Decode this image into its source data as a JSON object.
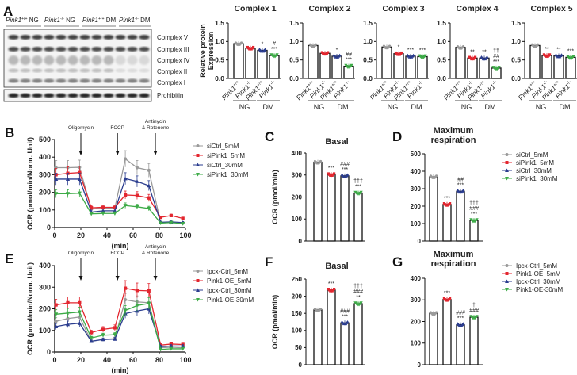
{
  "colors": {
    "gray": "#9a9a9a",
    "red": "#e3262f",
    "blue": "#2b3d8f",
    "green": "#3dab47"
  },
  "panel_labels": [
    "A",
    "B",
    "C",
    "D",
    "E",
    "F",
    "G"
  ],
  "western_blot": {
    "lane_groups": [
      {
        "gene": "Pink1",
        "genotype": "+/+",
        "condition": "NG"
      },
      {
        "gene": "Pink1",
        "genotype": "-/-",
        "condition": "NG"
      },
      {
        "gene": "Pink1",
        "genotype": "+/+",
        "condition": "DM"
      },
      {
        "gene": "Pink1",
        "genotype": "-/-",
        "condition": "DM"
      }
    ],
    "band_labels": [
      "Complex V",
      "Complex III",
      "Complex IV",
      "Complex II",
      "Complex I"
    ],
    "loading_control": "Prohibitin"
  },
  "chart_data": [
    {
      "id": "A-complex1",
      "type": "bar",
      "title": "Complex 1",
      "ylabel": "Relative protein Expression",
      "ylim": [
        0,
        1.5
      ],
      "yticks": [
        "0.0",
        "0.5",
        "1.0",
        "1.5"
      ],
      "categories": [
        {
          "gene": "Pink1",
          "genotype": "+/+"
        },
        {
          "gene": "Pink1",
          "genotype": "-/-"
        },
        {
          "gene": "Pink1",
          "genotype": "+/+"
        },
        {
          "gene": "Pink1",
          "genotype": "-/-"
        }
      ],
      "groups": [
        "NG",
        "DM"
      ],
      "values": [
        0.94,
        0.82,
        0.76,
        0.62
      ],
      "annotations": [
        "",
        "",
        "*",
        "#\n***"
      ]
    },
    {
      "id": "A-complex2",
      "type": "bar",
      "title": "Complex 2",
      "ylim": [
        0,
        1.5
      ],
      "yticks": [
        "0.0",
        "0.5",
        "1.0",
        "1.5"
      ],
      "categories": [
        {
          "gene": "Pink1",
          "genotype": "+/+"
        },
        {
          "gene": "Pink1",
          "genotype": "-/-"
        },
        {
          "gene": "Pink1",
          "genotype": "+/+"
        },
        {
          "gene": "Pink1",
          "genotype": "-/-"
        }
      ],
      "groups": [
        "NG",
        "DM"
      ],
      "values": [
        0.89,
        0.68,
        0.6,
        0.33
      ],
      "annotations": [
        "",
        "",
        "*",
        "##\n***"
      ]
    },
    {
      "id": "A-complex3",
      "type": "bar",
      "title": "Complex 3",
      "ylim": [
        0,
        1.5
      ],
      "yticks": [
        "0.0",
        "0.5",
        "1.0",
        "1.5"
      ],
      "categories": [
        {
          "gene": "Pink1",
          "genotype": "+/+"
        },
        {
          "gene": "Pink1",
          "genotype": "-/-"
        },
        {
          "gene": "Pink1",
          "genotype": "+/+"
        },
        {
          "gene": "Pink1",
          "genotype": "-/-"
        }
      ],
      "groups": [
        "NG",
        "DM"
      ],
      "values": [
        0.85,
        0.67,
        0.6,
        0.59
      ],
      "annotations": [
        "",
        "*",
        "***",
        "***"
      ]
    },
    {
      "id": "A-complex4",
      "type": "bar",
      "title": "Complex 4",
      "ylim": [
        0,
        1.5
      ],
      "yticks": [
        "0.0",
        "0.5",
        "1.0",
        "1.5"
      ],
      "categories": [
        {
          "gene": "Pink1",
          "genotype": "+/+"
        },
        {
          "gene": "Pink1",
          "genotype": "-/-"
        },
        {
          "gene": "Pink1",
          "genotype": "+/+"
        },
        {
          "gene": "Pink1",
          "genotype": "-/-"
        }
      ],
      "groups": [
        "NG",
        "DM"
      ],
      "values": [
        0.84,
        0.55,
        0.55,
        0.28
      ],
      "annotations": [
        "",
        "**",
        "**",
        "††\n##\n***"
      ]
    },
    {
      "id": "A-complex5",
      "type": "bar",
      "title": "Complex 5",
      "ylim": [
        0,
        1.5
      ],
      "yticks": [
        "0.0",
        "0.5",
        "1.0",
        "1.5"
      ],
      "categories": [
        {
          "gene": "Pink1",
          "genotype": "+/+"
        },
        {
          "gene": "Pink1",
          "genotype": "-/-"
        },
        {
          "gene": "Pink1",
          "genotype": "+/+"
        },
        {
          "gene": "Pink1",
          "genotype": "-/-"
        }
      ],
      "groups": [
        "NG",
        "DM"
      ],
      "values": [
        0.89,
        0.62,
        0.61,
        0.57
      ],
      "annotations": [
        "",
        "**",
        "**",
        "***"
      ]
    },
    {
      "id": "B",
      "type": "line",
      "xlabel": "(min)",
      "ylabel": "OCR (pmol/min/Norm. Unit)",
      "xlim": [
        0,
        100
      ],
      "ylim": [
        0,
        500
      ],
      "xticks": [
        "0",
        "20",
        "40",
        "60",
        "80",
        "100"
      ],
      "yticks": [
        "0",
        "100",
        "200",
        "300",
        "400",
        "500"
      ],
      "injections": [
        {
          "label": "Oligomycin",
          "time": 20
        },
        {
          "label": "FCCP",
          "time": 48
        },
        {
          "label": "Antinycin\n& Rotenone",
          "time": 77
        }
      ],
      "x": [
        1,
        10,
        19,
        28,
        37,
        46,
        54,
        63,
        72,
        81,
        89,
        98
      ],
      "series": [
        {
          "name": "siCtrl_5mM",
          "color": "gray",
          "marker": "circle",
          "values": [
            340,
            340,
            342,
            105,
            110,
            110,
            390,
            340,
            325,
            28,
            30,
            25
          ]
        },
        {
          "name": "siPink1_5mM",
          "color": "red",
          "marker": "square",
          "values": [
            300,
            308,
            312,
            112,
            115,
            115,
            185,
            182,
            168,
            58,
            68,
            52
          ]
        },
        {
          "name": "siCtrl_30mM",
          "color": "blue",
          "marker": "triangle",
          "values": [
            275,
            275,
            275,
            88,
            95,
            95,
            278,
            262,
            238,
            30,
            32,
            28
          ]
        },
        {
          "name": "siPink1_30mM",
          "color": "green",
          "marker": "triangle-down",
          "values": [
            192,
            192,
            195,
            78,
            80,
            80,
            125,
            118,
            108,
            25,
            28,
            22
          ]
        }
      ],
      "legend": "right"
    },
    {
      "id": "C",
      "type": "bar",
      "title": "Basal",
      "ylabel": "OCR (pmol/min)",
      "ylim": [
        0,
        400
      ],
      "yticks": [
        "0",
        "100",
        "200",
        "300",
        "400"
      ],
      "series_colors": [
        "gray",
        "red",
        "blue",
        "green"
      ],
      "values": [
        358,
        302,
        296,
        218
      ],
      "annotations": [
        "",
        "***",
        "###\n***",
        "†††\n***"
      ]
    },
    {
      "id": "D",
      "type": "bar",
      "title": "Maximum\nrespiration",
      "ylim": [
        0,
        500
      ],
      "yticks": [
        "0",
        "100",
        "200",
        "300",
        "400",
        "500"
      ],
      "series_colors": [
        "gray",
        "red",
        "blue",
        "green"
      ],
      "values": [
        368,
        210,
        285,
        118
      ],
      "annotations": [
        "",
        "***",
        "##\n***",
        "†††\n###\n***"
      ],
      "legend_entries": [
        {
          "name": "siCtrl_5mM",
          "color": "gray",
          "marker": "circle"
        },
        {
          "name": "siPink1_5mM",
          "color": "red",
          "marker": "square"
        },
        {
          "name": "siCtrl_30mM",
          "color": "blue",
          "marker": "triangle"
        },
        {
          "name": "siPink1_30mM",
          "color": "green",
          "marker": "triangle-down"
        }
      ]
    },
    {
      "id": "E",
      "type": "line",
      "xlabel": "(min)",
      "ylabel": "OCR (pmol/min/Norm. Unit)",
      "xlim": [
        0,
        100
      ],
      "ylim": [
        0,
        400
      ],
      "xticks": [
        "0",
        "20",
        "40",
        "60",
        "80",
        "100"
      ],
      "yticks": [
        "0",
        "100",
        "200",
        "300",
        "400"
      ],
      "injections": [
        {
          "label": "Oligomycin",
          "time": 20
        },
        {
          "label": "FCCP",
          "time": 48
        },
        {
          "label": "Antinycin\n& Rotenone",
          "time": 77
        }
      ],
      "x": [
        1,
        10,
        19,
        28,
        37,
        46,
        54,
        63,
        72,
        81,
        89,
        98
      ],
      "series": [
        {
          "name": "Ipcx-Ctrl_5mM",
          "color": "gray",
          "marker": "circle",
          "values": [
            142,
            155,
            162,
            50,
            58,
            62,
            242,
            232,
            228,
            20,
            22,
            20
          ]
        },
        {
          "name": "Pink1-OE_5mM",
          "color": "red",
          "marker": "square",
          "values": [
            218,
            228,
            228,
            90,
            105,
            112,
            295,
            285,
            283,
            32,
            37,
            35
          ]
        },
        {
          "name": "Ipcx-Ctrl_30mM",
          "color": "blue",
          "marker": "triangle",
          "values": [
            118,
            128,
            133,
            50,
            58,
            60,
            178,
            190,
            200,
            25,
            28,
            28
          ]
        },
        {
          "name": "Pink1-OE-30mM",
          "color": "green",
          "marker": "triangle-down",
          "values": [
            175,
            180,
            185,
            65,
            78,
            80,
            192,
            215,
            225,
            12,
            15,
            15
          ]
        }
      ],
      "legend": "right"
    },
    {
      "id": "F",
      "type": "bar",
      "title": "Basal",
      "ylabel": "OCR (pmol/min)",
      "ylim": [
        0,
        250
      ],
      "yticks": [
        "0",
        "50",
        "100",
        "150",
        "200",
        "250"
      ],
      "series_colors": [
        "gray",
        "red",
        "blue",
        "green"
      ],
      "values": [
        160,
        218,
        122,
        178
      ],
      "annotations": [
        "",
        "***",
        "###\n***",
        "†††\n###\n**"
      ]
    },
    {
      "id": "G",
      "type": "bar",
      "title": "Maximum\nrespiration",
      "ylim": [
        0,
        400
      ],
      "yticks": [
        "0",
        "100",
        "200",
        "300",
        "400"
      ],
      "series_colors": [
        "gray",
        "red",
        "blue",
        "green"
      ],
      "values": [
        238,
        302,
        185,
        220
      ],
      "annotations": [
        "",
        "***",
        "###\n***",
        "†\n###"
      ],
      "legend_entries": [
        {
          "name": "Ipcx-Ctrl_5mM",
          "color": "gray",
          "marker": "circle"
        },
        {
          "name": "Pink1-OE_5mM",
          "color": "red",
          "marker": "square"
        },
        {
          "name": "Ipcx-Ctrl_30mM",
          "color": "blue",
          "marker": "triangle"
        },
        {
          "name": "Pink1-OE-30mM",
          "color": "green",
          "marker": "triangle-down"
        }
      ]
    }
  ]
}
